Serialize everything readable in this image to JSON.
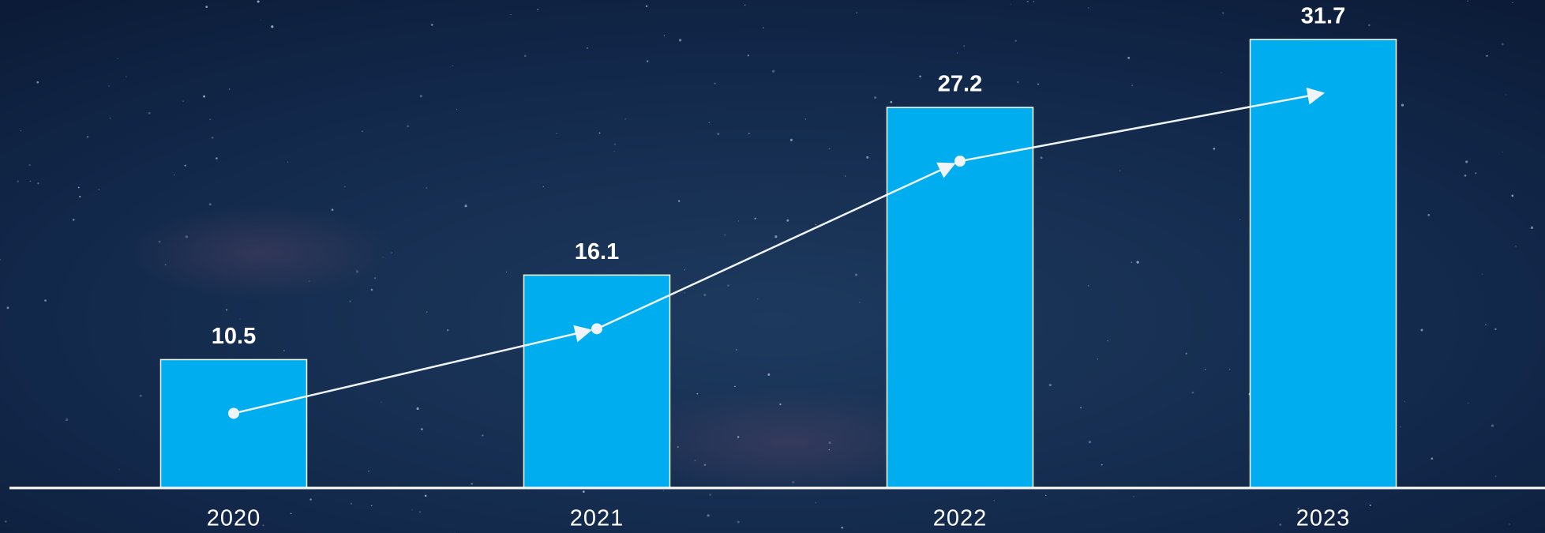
{
  "chart_data": {
    "type": "bar",
    "categories": [
      "2020",
      "2021",
      "2022",
      "2023"
    ],
    "values": [
      10.5,
      16.1,
      27.2,
      31.7
    ],
    "color": "#00aeef",
    "ylim": [
      2,
      34
    ],
    "trend_arrow": true
  }
}
